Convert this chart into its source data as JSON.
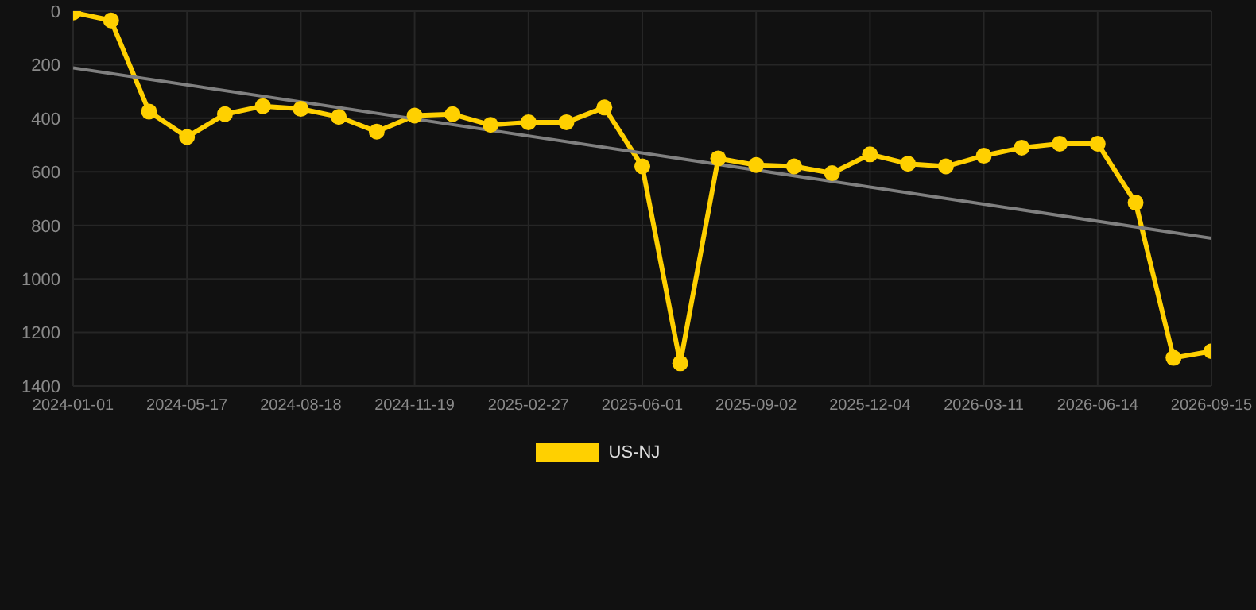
{
  "chart_data": {
    "type": "line",
    "categories": [
      "2024-01-01",
      null,
      null,
      "2024-05-17",
      null,
      null,
      "2024-08-18",
      null,
      null,
      "2024-11-19",
      null,
      null,
      "2025-02-27",
      null,
      null,
      "2025-06-01",
      null,
      null,
      "2025-09-02",
      null,
      null,
      "2025-12-04",
      null,
      null,
      "2026-03-11",
      null,
      null,
      "2026-06-14",
      null,
      null,
      "2026-09-15"
    ],
    "series": [
      {
        "name": "US-NJ",
        "color": "#ffd000",
        "marker": "circle",
        "values": [
          5,
          35,
          375,
          470,
          385,
          355,
          365,
          395,
          450,
          390,
          385,
          425,
          415,
          415,
          360,
          580,
          1315,
          550,
          575,
          580,
          605,
          535,
          570,
          580,
          540,
          510,
          495,
          495,
          715,
          1295,
          1270
        ]
      },
      {
        "color": "#808080",
        "marker": "none",
        "values": [
          212,
          null,
          null,
          null,
          null,
          null,
          null,
          null,
          null,
          null,
          null,
          null,
          null,
          null,
          null,
          null,
          null,
          null,
          null,
          null,
          null,
          null,
          null,
          null,
          null,
          null,
          null,
          null,
          null,
          null,
          848
        ]
      }
    ],
    "ylim": [
      1400,
      0
    ],
    "yticks": [
      0,
      200,
      400,
      600,
      800,
      1000,
      1200,
      1400
    ],
    "grid": true,
    "legend": "bottom"
  }
}
